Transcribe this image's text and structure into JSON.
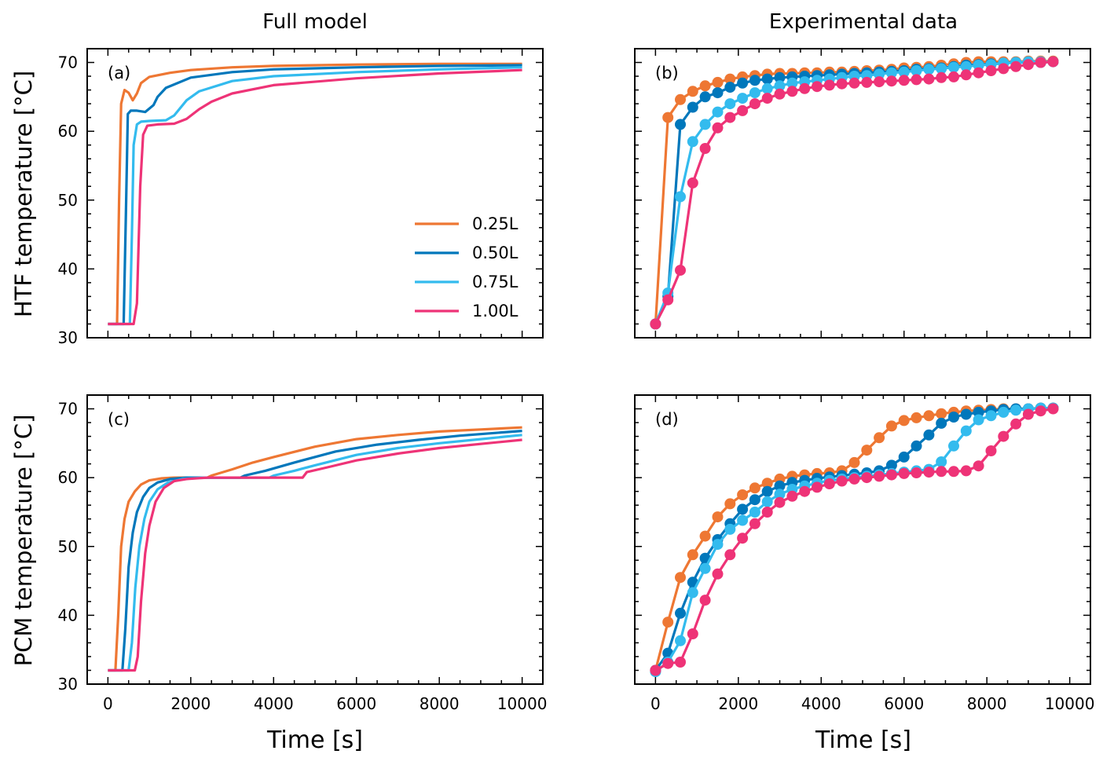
{
  "colors": {
    "s025": "#ee7733",
    "s050": "#0077bb",
    "s075": "#33bbee",
    "s100": "#ee3377"
  },
  "columns": {
    "left": "Full model",
    "right": "Experimental data"
  },
  "ylabels": {
    "top": "HTF temperature [°C]",
    "bottom": "PCM temperature [°C]"
  },
  "xlabel": "Time [s]",
  "legend": [
    "0.25L",
    "0.50L",
    "0.75L",
    "1.00L"
  ],
  "legend_position": "lower-right",
  "chart_data": [
    {
      "panel": "(a)",
      "type": "line",
      "xlim": [
        -500,
        10500
      ],
      "ylim": [
        30,
        72
      ],
      "xticks": [
        0,
        2000,
        4000,
        6000,
        8000,
        10000
      ],
      "yticks": [
        30,
        40,
        50,
        60,
        70
      ],
      "series": [
        {
          "name": "0.25L",
          "color": "#ee7733",
          "x": [
            0,
            220,
            270,
            320,
            400,
            500,
            600,
            700,
            800,
            1000,
            1500,
            2000,
            3000,
            4000,
            6000,
            8000,
            10000
          ],
          "y": [
            32,
            32,
            50,
            64,
            66,
            65.6,
            64.5,
            65.5,
            67,
            67.9,
            68.5,
            68.9,
            69.3,
            69.5,
            69.7,
            69.8,
            69.8
          ]
        },
        {
          "name": "0.50L",
          "color": "#0077bb",
          "x": [
            0,
            380,
            440,
            480,
            550,
            700,
            900,
            1100,
            1200,
            1400,
            2000,
            3000,
            4000,
            6000,
            8000,
            10000
          ],
          "y": [
            32,
            32,
            50,
            62.5,
            63,
            63,
            62.8,
            63.8,
            65,
            66.3,
            67.8,
            68.6,
            69,
            69.3,
            69.5,
            69.6
          ]
        },
        {
          "name": "0.75L",
          "color": "#33bbee",
          "x": [
            0,
            530,
            580,
            620,
            700,
            800,
            1000,
            1400,
            1600,
            1900,
            2200,
            3000,
            4000,
            6000,
            8000,
            10000
          ],
          "y": [
            32,
            32,
            45,
            58,
            61,
            61.4,
            61.5,
            61.6,
            62.3,
            64.5,
            65.8,
            67.3,
            68,
            68.6,
            69,
            69.3
          ]
        },
        {
          "name": "1.00L",
          "color": "#ee3377",
          "x": [
            0,
            620,
            700,
            780,
            850,
            950,
            1200,
            1600,
            1900,
            2200,
            2500,
            3000,
            4000,
            6000,
            8000,
            10000
          ],
          "y": [
            32,
            32,
            35,
            52,
            59.5,
            60.8,
            61,
            61.1,
            61.8,
            63.2,
            64.3,
            65.5,
            66.7,
            67.7,
            68.4,
            68.9
          ]
        }
      ]
    },
    {
      "panel": "(b)",
      "type": "line",
      "xlim": [
        -500,
        10500
      ],
      "ylim": [
        30,
        72
      ],
      "xticks": [
        0,
        2000,
        4000,
        6000,
        8000,
        10000
      ],
      "yticks": [
        30,
        40,
        50,
        60,
        70
      ],
      "series": [
        {
          "name": "0.25L",
          "color": "#ee7733",
          "x": [
            0,
            300,
            600,
            900,
            1200,
            1500,
            1800,
            2100,
            2400,
            2700,
            3000,
            3300,
            3600,
            3900,
            4200,
            4500,
            4800,
            5100,
            5400,
            5700,
            6000,
            6300,
            6600,
            6900,
            7200,
            7500,
            7800,
            8100,
            8400,
            8700,
            9000,
            9300,
            9600
          ],
          "y": [
            32,
            62,
            64.6,
            65.8,
            66.6,
            67.1,
            67.6,
            67.9,
            68.1,
            68.3,
            68.4,
            68.4,
            68.5,
            68.5,
            68.6,
            68.6,
            68.7,
            68.8,
            68.9,
            69,
            69.2,
            69.3,
            69.4,
            69.6,
            69.8,
            70,
            70.1,
            70.1,
            70.1,
            70.1,
            70.2,
            70.2,
            70.2
          ]
        },
        {
          "name": "0.50L",
          "color": "#0077bb",
          "x": [
            0,
            300,
            600,
            900,
            1200,
            1500,
            1800,
            2100,
            2400,
            2700,
            3000,
            3300,
            3600,
            3900,
            4200,
            4500,
            4800,
            5100,
            5400,
            5700,
            6000,
            6300,
            6600,
            6900,
            7200,
            7500,
            7800,
            8100,
            8400,
            8700,
            9000,
            9300,
            9600
          ],
          "y": [
            32,
            36,
            61,
            63.5,
            65,
            65.6,
            66.4,
            67,
            67.4,
            67.6,
            67.8,
            67.9,
            68,
            68.1,
            68.2,
            68.3,
            68.4,
            68.5,
            68.6,
            68.7,
            68.8,
            69,
            69.1,
            69.2,
            69.4,
            69.6,
            69.7,
            69.8,
            69.9,
            70,
            70,
            70,
            70.1
          ]
        },
        {
          "name": "0.75L",
          "color": "#33bbee",
          "x": [
            0,
            300,
            600,
            900,
            1200,
            1500,
            1800,
            2100,
            2400,
            2700,
            3000,
            3300,
            3600,
            3900,
            4200,
            4500,
            4800,
            5100,
            5400,
            5700,
            6000,
            6300,
            6600,
            6900,
            7200,
            7500,
            7800,
            8100,
            8400,
            8700,
            9000,
            9300,
            9600
          ],
          "y": [
            32,
            36.5,
            50.5,
            58.5,
            61,
            62.8,
            64,
            64.8,
            65.6,
            66.2,
            66.6,
            67,
            67.2,
            67.4,
            67.6,
            67.8,
            68,
            68.1,
            68.3,
            68.5,
            68.6,
            68.8,
            69,
            69.1,
            69.3,
            69.4,
            69.6,
            69.7,
            69.9,
            70,
            70.1,
            70.1,
            70.1
          ]
        },
        {
          "name": "1.00L",
          "color": "#ee3377",
          "x": [
            0,
            300,
            600,
            900,
            1200,
            1500,
            1800,
            2100,
            2400,
            2700,
            3000,
            3300,
            3600,
            3900,
            4200,
            4500,
            4800,
            5100,
            5400,
            5700,
            6000,
            6300,
            6600,
            6900,
            7200,
            7500,
            7800,
            8100,
            8400,
            8700,
            9000,
            9300,
            9600
          ],
          "y": [
            32,
            35.5,
            39.8,
            52.5,
            57.5,
            60.5,
            62,
            63,
            64,
            64.8,
            65.4,
            65.8,
            66.2,
            66.5,
            66.7,
            66.9,
            67,
            67.1,
            67.2,
            67.3,
            67.4,
            67.5,
            67.6,
            67.8,
            67.9,
            68.2,
            68.5,
            68.8,
            69.1,
            69.4,
            69.7,
            70,
            70.1
          ]
        }
      ]
    },
    {
      "panel": "(c)",
      "type": "line",
      "xlim": [
        -500,
        10500
      ],
      "ylim": [
        30,
        72
      ],
      "xticks": [
        0,
        2000,
        4000,
        6000,
        8000,
        10000
      ],
      "yticks": [
        30,
        40,
        50,
        60,
        70
      ],
      "series": [
        {
          "name": "0.25L",
          "color": "#ee7733",
          "x": [
            0,
            180,
            250,
            320,
            400,
            500,
            650,
            800,
            1000,
            1300,
            1600,
            2000,
            2400,
            2500,
            3000,
            3500,
            4000,
            5000,
            6000,
            7000,
            8000,
            9000,
            10000
          ],
          "y": [
            32,
            32,
            40,
            50,
            54,
            56.5,
            58,
            59,
            59.6,
            59.9,
            60,
            60,
            60,
            60.3,
            61.2,
            62.2,
            63,
            64.5,
            65.6,
            66.2,
            66.7,
            67,
            67.3
          ]
        },
        {
          "name": "0.50L",
          "color": "#0077bb",
          "x": [
            0,
            350,
            420,
            500,
            600,
            700,
            850,
            1000,
            1200,
            1500,
            1900,
            2500,
            3200,
            3300,
            3800,
            4500,
            5500,
            6500,
            7500,
            8500,
            10000
          ],
          "y": [
            32,
            32,
            38,
            47,
            52,
            55,
            57.2,
            58.5,
            59.3,
            59.8,
            60,
            60,
            60,
            60.3,
            61,
            62.2,
            63.8,
            64.8,
            65.5,
            66.1,
            66.8
          ]
        },
        {
          "name": "0.75L",
          "color": "#33bbee",
          "x": [
            0,
            500,
            580,
            660,
            760,
            880,
            1000,
            1200,
            1450,
            1800,
            2300,
            3000,
            3900,
            4000,
            4500,
            5000,
            6000,
            7000,
            8000,
            9000,
            10000
          ],
          "y": [
            32,
            32,
            36,
            44,
            50,
            54,
            56.5,
            58.3,
            59.3,
            59.8,
            60,
            60,
            60,
            60.3,
            61,
            61.8,
            63.3,
            64.3,
            65,
            65.6,
            66.2
          ]
        },
        {
          "name": "1.00L",
          "color": "#ee3377",
          "x": [
            0,
            650,
            720,
            800,
            900,
            1000,
            1150,
            1350,
            1600,
            1900,
            2400,
            3000,
            4000,
            4700,
            4800,
            5300,
            6000,
            7000,
            8000,
            9000,
            10000
          ],
          "y": [
            32,
            32,
            34,
            42,
            49,
            53,
            56.5,
            58.5,
            59.5,
            59.8,
            60,
            60,
            60,
            60,
            60.8,
            61.5,
            62.5,
            63.5,
            64.3,
            64.9,
            65.5
          ]
        }
      ]
    },
    {
      "panel": "(d)",
      "type": "line",
      "xlim": [
        -500,
        10500
      ],
      "ylim": [
        30,
        72
      ],
      "xticks": [
        0,
        2000,
        4000,
        6000,
        8000,
        10000
      ],
      "yticks": [
        30,
        40,
        50,
        60,
        70
      ],
      "series": [
        {
          "name": "0.25L",
          "color": "#ee7733",
          "x": [
            0,
            300,
            600,
            900,
            1200,
            1500,
            1800,
            2100,
            2400,
            2700,
            3000,
            3300,
            3600,
            3900,
            4200,
            4500,
            4800,
            5100,
            5400,
            5700,
            6000,
            6300,
            6600,
            6900,
            7200,
            7500,
            7800,
            8100,
            8400,
            8700,
            9000,
            9300,
            9600
          ],
          "y": [
            32,
            39,
            45.5,
            48.8,
            51.5,
            54.3,
            56.2,
            57.5,
            58.5,
            59.2,
            59.8,
            60.2,
            60.4,
            60.6,
            60.7,
            61,
            62.2,
            64,
            65.8,
            67.5,
            68.3,
            68.7,
            69,
            69.3,
            69.5,
            69.7,
            69.8,
            69.9,
            70,
            70,
            70,
            70.1,
            70.1
          ]
        },
        {
          "name": "0.50L",
          "color": "#0077bb",
          "x": [
            0,
            300,
            600,
            900,
            1200,
            1500,
            1800,
            2100,
            2400,
            2700,
            3000,
            3300,
            3600,
            3900,
            4200,
            4500,
            4800,
            5100,
            5400,
            5700,
            6000,
            6300,
            6600,
            6900,
            7200,
            7500,
            7800,
            8100,
            8400,
            8700,
            9000,
            9300,
            9600
          ],
          "y": [
            32,
            34.5,
            40.3,
            44.8,
            48.3,
            51,
            53.3,
            55.4,
            56.8,
            58,
            58.8,
            59.3,
            59.6,
            59.9,
            60.1,
            60.3,
            60.5,
            60.7,
            61,
            61.8,
            63,
            64.6,
            66.2,
            67.9,
            68.8,
            69.2,
            69.5,
            69.7,
            69.9,
            70,
            70,
            70.1,
            70.1
          ]
        },
        {
          "name": "0.75L",
          "color": "#33bbee",
          "x": [
            0,
            300,
            600,
            900,
            1200,
            1500,
            1800,
            2100,
            2400,
            2700,
            3000,
            3300,
            3600,
            3900,
            4200,
            4500,
            4800,
            5100,
            5400,
            5700,
            6000,
            6300,
            6600,
            6900,
            7200,
            7500,
            7800,
            8100,
            8400,
            8700,
            9000,
            9300,
            9600
          ],
          "y": [
            31.8,
            33.2,
            36.3,
            43.3,
            46.8,
            50.3,
            52.5,
            53.8,
            55,
            56.5,
            57.6,
            58.3,
            58.8,
            59.2,
            59.6,
            59.8,
            60,
            60.2,
            60.4,
            60.6,
            60.8,
            61,
            61.2,
            62.3,
            64.6,
            66.8,
            68.4,
            69,
            69.5,
            69.8,
            70,
            70.1,
            70.1
          ]
        },
        {
          "name": "1.00L",
          "color": "#ee3377",
          "x": [
            0,
            300,
            600,
            900,
            1200,
            1500,
            1800,
            2100,
            2400,
            2700,
            3000,
            3300,
            3600,
            3900,
            4200,
            4500,
            4800,
            5100,
            5400,
            5700,
            6000,
            6300,
            6600,
            6900,
            7200,
            7500,
            7800,
            8100,
            8400,
            8700,
            9000,
            9300,
            9600
          ],
          "y": [
            32,
            33,
            33.2,
            37.3,
            42.2,
            46,
            48.8,
            51.2,
            53.3,
            55,
            56.4,
            57.3,
            58,
            58.6,
            59.1,
            59.5,
            59.8,
            60,
            60.2,
            60.4,
            60.6,
            60.7,
            60.8,
            60.9,
            60.9,
            61,
            61.7,
            63.9,
            66,
            67.8,
            69.2,
            69.7,
            70
          ]
        }
      ]
    }
  ]
}
